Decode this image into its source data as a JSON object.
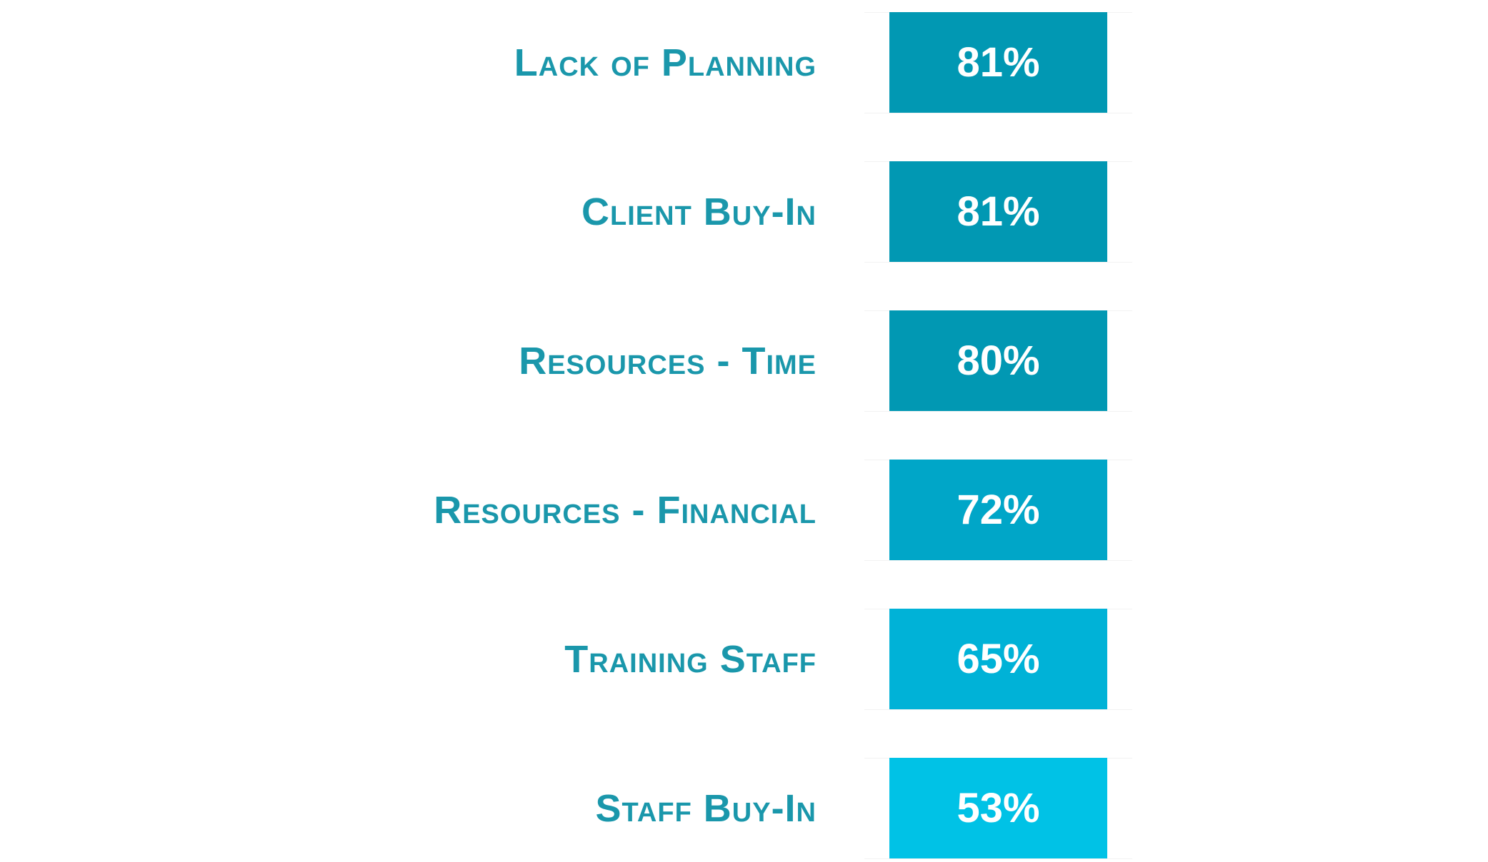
{
  "chart_data": {
    "type": "bar",
    "orientation": "horizontal",
    "categories": [
      "Lack of Planning",
      "Client Buy-In",
      "Resources - Time",
      "Resources - Financial",
      "Training Staff",
      "Staff Buy-In"
    ],
    "values": [
      81,
      81,
      80,
      72,
      65,
      53
    ],
    "value_labels": [
      "81%",
      "81%",
      "80%",
      "72%",
      "65%",
      "53%"
    ],
    "unit": "%",
    "bar_colors": [
      "#0198b3",
      "#0198b3",
      "#0198b3",
      "#00a6c8",
      "#00b2d7",
      "#00c2e6"
    ],
    "label_color": "#1a97ab",
    "title": "",
    "xlabel": "",
    "ylabel": "",
    "grid": false,
    "legend": "none"
  }
}
